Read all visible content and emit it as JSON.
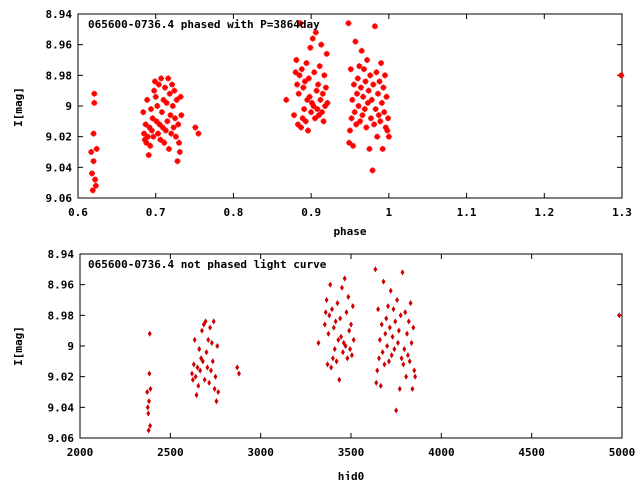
{
  "chart_data": [
    {
      "type": "scatter",
      "title": "065600-0736.4 phased with P=3864day",
      "xlabel": "phase",
      "ylabel": "I[mag]",
      "xlim": [
        0.6,
        1.3
      ],
      "ylim": [
        9.06,
        8.94
      ],
      "y_inverted": true,
      "x_ticks": [
        0.6,
        0.7,
        0.8,
        0.9,
        1.0,
        1.1,
        1.2,
        1.3
      ],
      "x_tick_labels": [
        "0.6",
        "0.7",
        "0.8",
        "0.9",
        "1",
        "1.1",
        "1.2",
        "1.3"
      ],
      "y_ticks": [
        8.94,
        8.96,
        8.98,
        9.0,
        9.02,
        9.04,
        9.06
      ],
      "y_tick_labels": [
        "8.94",
        "8.96",
        "8.98",
        "9",
        "9.02",
        "9.04",
        "9.06"
      ],
      "marker": "plus",
      "color": "#ff0000",
      "points": [
        [
          0.617,
          9.03
        ],
        [
          0.618,
          9.044
        ],
        [
          0.619,
          9.055
        ],
        [
          0.62,
          9.036
        ],
        [
          0.62,
          9.018
        ],
        [
          0.621,
          8.992
        ],
        [
          0.621,
          8.998
        ],
        [
          0.622,
          9.048
        ],
        [
          0.623,
          9.052
        ],
        [
          0.624,
          9.028
        ],
        [
          0.684,
          9.004
        ],
        [
          0.685,
          9.018
        ],
        [
          0.686,
          9.022
        ],
        [
          0.687,
          9.012
        ],
        [
          0.688,
          9.024
        ],
        [
          0.689,
          8.996
        ],
        [
          0.69,
          9.02
        ],
        [
          0.691,
          9.032
        ],
        [
          0.692,
          9.014
        ],
        [
          0.693,
          9.026
        ],
        [
          0.694,
          9.002
        ],
        [
          0.695,
          9.016
        ],
        [
          0.696,
          9.008
        ],
        [
          0.697,
          9.02
        ],
        [
          0.698,
          8.99
        ],
        [
          0.699,
          8.984
        ],
        [
          0.7,
          8.994
        ],
        [
          0.701,
          9.01
        ],
        [
          0.702,
          9.0
        ],
        [
          0.703,
          9.018
        ],
        [
          0.704,
          8.986
        ],
        [
          0.705,
          9.012
        ],
        [
          0.706,
          9.022
        ],
        [
          0.707,
          8.982
        ],
        [
          0.708,
          9.004
        ],
        [
          0.709,
          9.014
        ],
        [
          0.71,
          8.996
        ],
        [
          0.711,
          9.024
        ],
        [
          0.712,
          8.988
        ],
        [
          0.713,
          9.016
        ],
        [
          0.714,
          8.998
        ],
        [
          0.715,
          9.01
        ],
        [
          0.716,
          8.982
        ],
        [
          0.717,
          9.028
        ],
        [
          0.718,
          8.992
        ],
        [
          0.719,
          9.006
        ],
        [
          0.72,
          9.018
        ],
        [
          0.721,
          8.986
        ],
        [
          0.722,
          9.0
        ],
        [
          0.723,
          9.014
        ],
        [
          0.724,
          8.99
        ],
        [
          0.725,
          9.008
        ],
        [
          0.726,
          9.02
        ],
        [
          0.727,
          8.996
        ],
        [
          0.728,
          9.036
        ],
        [
          0.729,
          9.012
        ],
        [
          0.73,
          9.024
        ],
        [
          0.731,
          9.03
        ],
        [
          0.732,
          8.994
        ],
        [
          0.733,
          9.006
        ],
        [
          0.751,
          9.014
        ],
        [
          0.755,
          9.018
        ],
        [
          0.868,
          8.996
        ],
        [
          0.878,
          9.006
        ],
        [
          0.88,
          8.978
        ],
        [
          0.881,
          8.97
        ],
        [
          0.882,
          8.986
        ],
        [
          0.883,
          9.012
        ],
        [
          0.884,
          8.992
        ],
        [
          0.885,
          8.98
        ],
        [
          0.886,
          8.946
        ],
        [
          0.887,
          9.014
        ],
        [
          0.888,
          8.976
        ],
        [
          0.889,
          9.008
        ],
        [
          0.89,
          8.988
        ],
        [
          0.891,
          9.002
        ],
        [
          0.892,
          8.984
        ],
        [
          0.893,
          9.01
        ],
        [
          0.894,
          8.972
        ],
        [
          0.895,
          8.996
        ],
        [
          0.896,
          9.016
        ],
        [
          0.897,
          8.982
        ],
        [
          0.898,
          8.994
        ],
        [
          0.899,
          8.962
        ],
        [
          0.9,
          9.004
        ],
        [
          0.901,
          8.998
        ],
        [
          0.902,
          8.956
        ],
        [
          0.903,
          9.0
        ],
        [
          0.904,
          8.978
        ],
        [
          0.905,
          9.008
        ],
        [
          0.906,
          8.952
        ],
        [
          0.907,
          8.99
        ],
        [
          0.908,
          9.002
        ],
        [
          0.909,
          8.986
        ],
        [
          0.91,
          9.006
        ],
        [
          0.911,
          8.974
        ],
        [
          0.912,
          8.996
        ],
        [
          0.913,
          8.96
        ],
        [
          0.914,
          9.004
        ],
        [
          0.915,
          8.992
        ],
        [
          0.916,
          9.01
        ],
        [
          0.917,
          8.98
        ],
        [
          0.918,
          9.0
        ],
        [
          0.919,
          8.988
        ],
        [
          0.92,
          8.966
        ],
        [
          0.921,
          8.998
        ],
        [
          0.948,
          8.946
        ],
        [
          0.949,
          9.024
        ],
        [
          0.95,
          9.016
        ],
        [
          0.951,
          8.976
        ],
        [
          0.952,
          9.008
        ],
        [
          0.953,
          8.996
        ],
        [
          0.954,
          9.026
        ],
        [
          0.955,
          8.986
        ],
        [
          0.956,
          9.004
        ],
        [
          0.957,
          8.958
        ],
        [
          0.958,
          9.012
        ],
        [
          0.959,
          8.992
        ],
        [
          0.96,
          8.982
        ],
        [
          0.961,
          9.0
        ],
        [
          0.962,
          8.974
        ],
        [
          0.963,
          9.01
        ],
        [
          0.964,
          8.988
        ],
        [
          0.965,
          8.964
        ],
        [
          0.966,
          9.006
        ],
        [
          0.967,
          8.994
        ],
        [
          0.968,
          8.976
        ],
        [
          0.969,
          9.002
        ],
        [
          0.97,
          8.984
        ],
        [
          0.971,
          9.014
        ],
        [
          0.972,
          8.97
        ],
        [
          0.973,
          8.998
        ],
        [
          0.974,
          8.99
        ],
        [
          0.975,
          9.028
        ],
        [
          0.976,
          8.98
        ],
        [
          0.977,
          9.008
        ],
        [
          0.978,
          8.996
        ],
        [
          0.979,
          9.042
        ],
        [
          0.98,
          8.986
        ],
        [
          0.981,
          9.012
        ],
        [
          0.982,
          8.948
        ],
        [
          0.983,
          9.002
        ],
        [
          0.984,
          8.978
        ],
        [
          0.985,
          9.02
        ],
        [
          0.986,
          8.992
        ],
        [
          0.987,
          9.006
        ],
        [
          0.988,
          8.984
        ],
        [
          0.989,
          9.01
        ],
        [
          0.99,
          8.972
        ],
        [
          0.991,
          8.998
        ],
        [
          0.992,
          9.028
        ],
        [
          0.993,
          8.988
        ],
        [
          0.994,
          9.004
        ],
        [
          0.995,
          8.98
        ],
        [
          0.996,
          9.014
        ],
        [
          0.997,
          8.994
        ],
        [
          0.998,
          9.016
        ],
        [
          0.999,
          9.008
        ],
        [
          1.0,
          9.02
        ],
        [
          1.299,
          8.98
        ]
      ]
    },
    {
      "type": "scatter",
      "title": "065600-0736.4 not phased light curve",
      "xlabel": "hjd0",
      "ylabel": "I[mag]",
      "xlim": [
        2000,
        5000
      ],
      "ylim": [
        9.06,
        8.94
      ],
      "y_inverted": true,
      "x_ticks": [
        2000,
        2500,
        3000,
        3500,
        4000,
        4500,
        5000
      ],
      "x_tick_labels": [
        "2000",
        "2500",
        "3000",
        "3500",
        "4000",
        "4500",
        "5000"
      ],
      "y_ticks": [
        8.94,
        8.96,
        8.98,
        9.0,
        9.02,
        9.04,
        9.06
      ],
      "y_tick_labels": [
        "8.94",
        "8.96",
        "8.98",
        "9",
        "9.02",
        "9.04",
        "9.06"
      ],
      "marker": "diamond",
      "color": "#cc0000",
      "points": [
        [
          2372,
          9.03
        ],
        [
          2375,
          9.04
        ],
        [
          2378,
          9.044
        ],
        [
          2380,
          9.055
        ],
        [
          2382,
          9.036
        ],
        [
          2384,
          9.018
        ],
        [
          2386,
          8.992
        ],
        [
          2388,
          9.052
        ],
        [
          2390,
          9.028
        ],
        [
          2620,
          9.018
        ],
        [
          2625,
          9.022
        ],
        [
          2630,
          9.012
        ],
        [
          2635,
          8.996
        ],
        [
          2640,
          9.02
        ],
        [
          2645,
          9.032
        ],
        [
          2650,
          9.014
        ],
        [
          2655,
          9.026
        ],
        [
          2660,
          9.002
        ],
        [
          2665,
          9.016
        ],
        [
          2670,
          9.008
        ],
        [
          2675,
          8.99
        ],
        [
          2680,
          9.01
        ],
        [
          2685,
          8.986
        ],
        [
          2690,
          9.022
        ],
        [
          2695,
          8.984
        ],
        [
          2700,
          9.004
        ],
        [
          2705,
          9.014
        ],
        [
          2710,
          8.996
        ],
        [
          2715,
          9.024
        ],
        [
          2720,
          8.988
        ],
        [
          2725,
          9.016
        ],
        [
          2730,
          8.998
        ],
        [
          2735,
          9.01
        ],
        [
          2740,
          8.984
        ],
        [
          2745,
          9.028
        ],
        [
          2750,
          9.02
        ],
        [
          2755,
          9.036
        ],
        [
          2760,
          9.0
        ],
        [
          2765,
          9.03
        ],
        [
          2870,
          9.014
        ],
        [
          2880,
          9.018
        ],
        [
          3320,
          8.998
        ],
        [
          3355,
          8.986
        ],
        [
          3360,
          8.978
        ],
        [
          3365,
          8.97
        ],
        [
          3370,
          9.012
        ],
        [
          3375,
          8.992
        ],
        [
          3380,
          8.98
        ],
        [
          3385,
          8.96
        ],
        [
          3390,
          9.014
        ],
        [
          3395,
          8.976
        ],
        [
          3400,
          9.008
        ],
        [
          3405,
          8.988
        ],
        [
          3410,
          9.002
        ],
        [
          3415,
          8.984
        ],
        [
          3420,
          9.01
        ],
        [
          3425,
          8.972
        ],
        [
          3430,
          8.996
        ],
        [
          3435,
          9.022
        ],
        [
          3440,
          8.982
        ],
        [
          3445,
          8.994
        ],
        [
          3450,
          8.962
        ],
        [
          3455,
          9.004
        ],
        [
          3460,
          8.998
        ],
        [
          3465,
          8.956
        ],
        [
          3470,
          9.0
        ],
        [
          3475,
          8.978
        ],
        [
          3480,
          9.008
        ],
        [
          3485,
          8.968
        ],
        [
          3490,
          8.99
        ],
        [
          3495,
          9.002
        ],
        [
          3500,
          8.986
        ],
        [
          3505,
          9.006
        ],
        [
          3510,
          8.974
        ],
        [
          3515,
          8.996
        ],
        [
          3635,
          8.95
        ],
        [
          3640,
          9.024
        ],
        [
          3645,
          9.016
        ],
        [
          3650,
          8.976
        ],
        [
          3655,
          9.008
        ],
        [
          3660,
          8.996
        ],
        [
          3665,
          9.026
        ],
        [
          3670,
          8.986
        ],
        [
          3675,
          9.004
        ],
        [
          3680,
          8.958
        ],
        [
          3685,
          9.012
        ],
        [
          3690,
          8.992
        ],
        [
          3695,
          8.982
        ],
        [
          3700,
          9.0
        ],
        [
          3705,
          8.974
        ],
        [
          3710,
          9.01
        ],
        [
          3715,
          8.988
        ],
        [
          3720,
          8.964
        ],
        [
          3725,
          9.006
        ],
        [
          3730,
          8.994
        ],
        [
          3735,
          8.976
        ],
        [
          3740,
          9.002
        ],
        [
          3745,
          8.984
        ],
        [
          3750,
          9.042
        ],
        [
          3755,
          8.97
        ],
        [
          3760,
          8.998
        ],
        [
          3765,
          8.99
        ],
        [
          3770,
          9.028
        ],
        [
          3775,
          8.98
        ],
        [
          3780,
          9.008
        ],
        [
          3785,
          8.952
        ],
        [
          3790,
          9.012
        ],
        [
          3795,
          9.002
        ],
        [
          3800,
          8.978
        ],
        [
          3805,
          9.02
        ],
        [
          3810,
          8.992
        ],
        [
          3815,
          9.006
        ],
        [
          3820,
          8.984
        ],
        [
          3825,
          9.01
        ],
        [
          3830,
          8.972
        ],
        [
          3835,
          8.998
        ],
        [
          3840,
          9.028
        ],
        [
          3845,
          8.988
        ],
        [
          3850,
          9.016
        ],
        [
          3855,
          9.02
        ],
        [
          4985,
          8.98
        ]
      ]
    }
  ]
}
